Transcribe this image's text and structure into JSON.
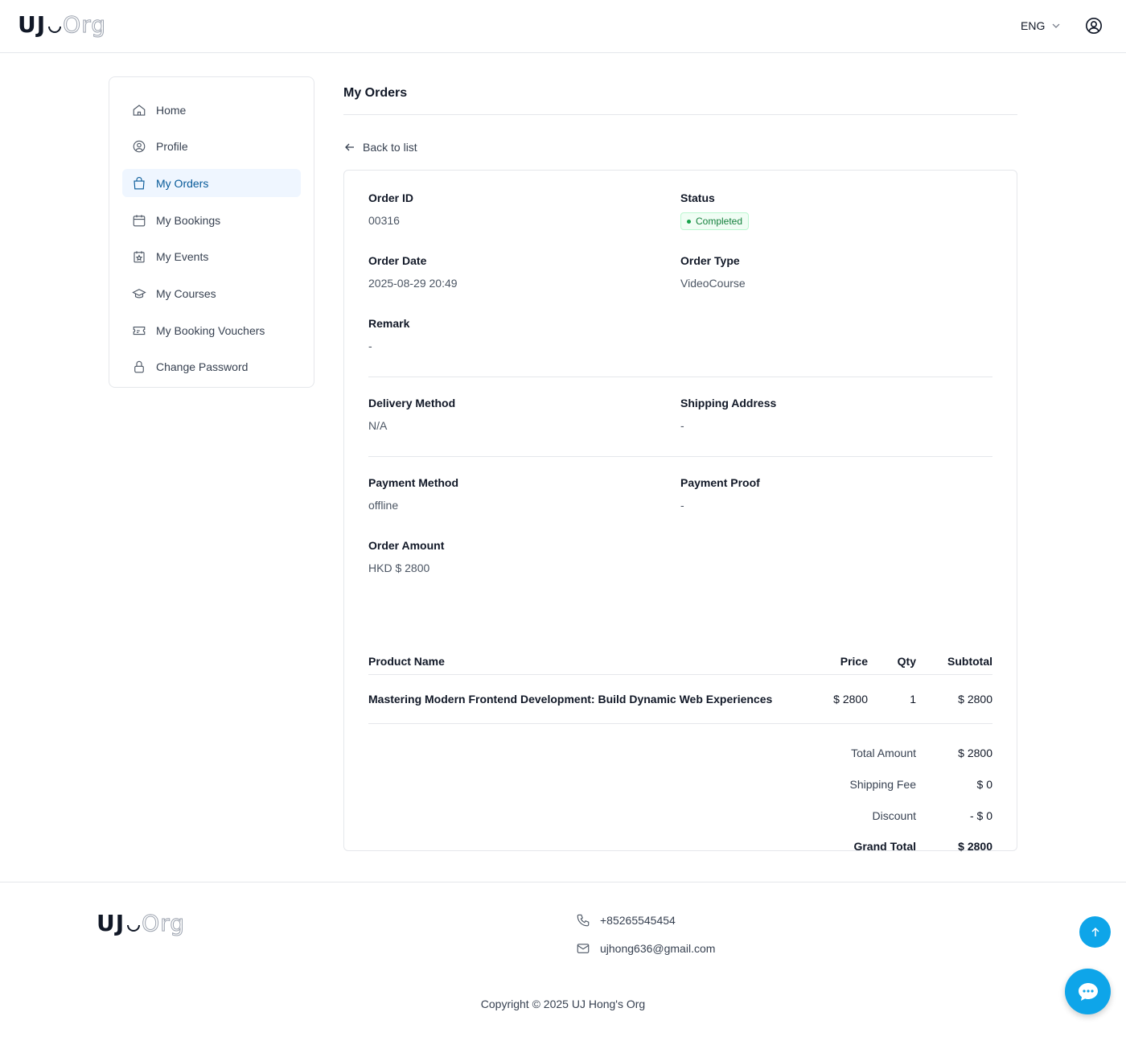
{
  "header": {
    "logo": {
      "primary": "UJ",
      "secondary": "Org"
    },
    "language": "ENG"
  },
  "sidebar": {
    "items": [
      {
        "label": "Home",
        "icon": "home-icon"
      },
      {
        "label": "Profile",
        "icon": "user-circle-icon"
      },
      {
        "label": "My Orders",
        "icon": "shopping-bag-icon",
        "active": true
      },
      {
        "label": "My Bookings",
        "icon": "calendar-icon"
      },
      {
        "label": "My Events",
        "icon": "calendar-star-icon"
      },
      {
        "label": "My Courses",
        "icon": "graduation-cap-icon"
      },
      {
        "label": "My Booking Vouchers",
        "icon": "ticket-icon"
      },
      {
        "label": "Change Password",
        "icon": "lock-icon"
      }
    ]
  },
  "main": {
    "title": "My Orders",
    "back_label": "Back to list",
    "order": {
      "order_id_label": "Order ID",
      "order_id": "00316",
      "status_label": "Status",
      "status": "Completed",
      "status_color": "#16a34a",
      "date_label": "Order Date",
      "date": "2025-08-29 20:49",
      "type_label": "Order Type",
      "type": "VideoCourse",
      "remark_label": "Remark",
      "remark": "-",
      "delivery_label": "Delivery Method",
      "delivery": "N/A",
      "shipping_label": "Shipping Address",
      "shipping": "-",
      "payment_label": "Payment Method",
      "payment": "offline",
      "proof_label": "Payment Proof",
      "proof": "-",
      "amount_label": "Order Amount",
      "amount": "HKD $ 2800"
    },
    "table": {
      "headers": [
        "Product Name",
        "Price",
        "Qty",
        "Subtotal"
      ],
      "rows": [
        [
          "Mastering Modern Frontend Development: Build Dynamic Web Experiences",
          "$ 2800",
          "1",
          "$ 2800"
        ]
      ]
    },
    "totals": [
      {
        "label": "Total Amount",
        "value": "$ 2800"
      },
      {
        "label": "Shipping Fee",
        "value": "$ 0"
      },
      {
        "label": "Discount",
        "value": "- $ 0"
      },
      {
        "label": "Grand Total",
        "value": "$ 2800"
      }
    ]
  },
  "footer": {
    "phone": "+85265545454",
    "email": "ujhong636@gmail.com",
    "copyright": "Copyright © 2025 UJ Hong's Org"
  },
  "colors": {
    "accent": "#0ea5e9",
    "active_text": "#075a99"
  }
}
